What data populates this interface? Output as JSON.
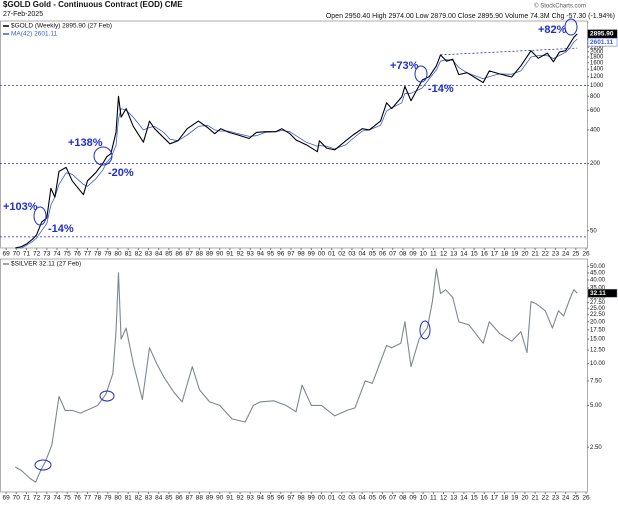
{
  "header": {
    "title": "$GOLD Gold - Continuous Contract (EOD) CME",
    "date": "27-Feb-2025",
    "quote": "Open 2950.40 High 2974.00 Low 2879.00 Close 2895.90 Volume 74.3M Chg -57.30 (-1.94%)",
    "credit": "© StockCharts.com"
  },
  "chart_data": [
    {
      "type": "line",
      "log_scale": true,
      "x": [
        1969.9,
        1970.5,
        1971.0,
        1971.6,
        1972.0,
        1972.5,
        1973.0,
        1973.4,
        1973.8,
        1974.2,
        1974.9,
        1975.5,
        1976.6,
        1977.0,
        1977.8,
        1978.5,
        1978.9,
        1979.3,
        1979.8,
        1980.05,
        1980.3,
        1980.8,
        1981.5,
        1982.5,
        1983.1,
        1983.6,
        1984.5,
        1985.1,
        1985.9,
        1986.8,
        1987.9,
        1988.8,
        1989.5,
        1990.1,
        1990.9,
        1991.8,
        1992.9,
        1993.6,
        1994.5,
        1995.5,
        1996.1,
        1996.9,
        1997.5,
        1998.5,
        1999.6,
        1999.8,
        2000.5,
        2001.3,
        2002.4,
        2003.1,
        2004.0,
        2004.7,
        2005.8,
        2006.4,
        2006.9,
        2007.9,
        2008.2,
        2008.8,
        2009.9,
        2010.6,
        2011.3,
        2011.7,
        2012.3,
        2012.9,
        2013.5,
        2014.3,
        2015.9,
        2016.5,
        2017.5,
        2018.7,
        2019.6,
        2020.6,
        2021.3,
        2022.2,
        2022.8,
        2023.4,
        2024.0,
        2024.4,
        2024.8,
        2025.15
      ],
      "series": [
        {
          "name": "$GOLD (Weekly) 2895.90 (27 Feb)",
          "color": "#000000",
          "last_label": "2895.90",
          "values": [
            35,
            36,
            38,
            42,
            46,
            60,
            65,
            120,
            100,
            170,
            185,
            140,
            105,
            140,
            165,
            200,
            230,
            245,
            380,
            800,
            520,
            620,
            430,
            310,
            480,
            410,
            340,
            300,
            320,
            410,
            480,
            420,
            370,
            410,
            380,
            360,
            335,
            380,
            385,
            385,
            410,
            370,
            325,
            295,
            255,
            320,
            275,
            265,
            320,
            360,
            410,
            400,
            480,
            700,
            620,
            790,
            980,
            730,
            1120,
            1200,
            1500,
            1880,
            1650,
            1720,
            1250,
            1300,
            1060,
            1350,
            1270,
            1190,
            1500,
            2050,
            1750,
            1950,
            1630,
            2000,
            2050,
            2350,
            2700,
            2895.9
          ]
        },
        {
          "name": "MA(42) 2601.11",
          "color": "#3b5bd9",
          "last_label": "2601.11",
          "values": [
            35,
            35,
            37,
            40,
            43,
            50,
            58,
            85,
            100,
            130,
            165,
            160,
            130,
            125,
            145,
            175,
            205,
            225,
            290,
            500,
            620,
            600,
            520,
            400,
            420,
            430,
            380,
            330,
            320,
            360,
            430,
            440,
            400,
            390,
            390,
            370,
            350,
            355,
            380,
            385,
            395,
            385,
            355,
            310,
            285,
            290,
            285,
            270,
            295,
            335,
            390,
            400,
            440,
            590,
            630,
            700,
            850,
            850,
            950,
            1150,
            1380,
            1650,
            1700,
            1680,
            1450,
            1300,
            1150,
            1200,
            1270,
            1260,
            1350,
            1800,
            1850,
            1850,
            1740,
            1860,
            1980,
            2150,
            2450,
            2601.11
          ]
        }
      ],
      "xlim": [
        1968.4,
        2026.1
      ],
      "ylim": [
        35,
        3780
      ],
      "yticks": [
        50,
        200,
        400,
        600,
        800,
        1000,
        1200,
        1400,
        1600,
        1800,
        2000,
        2200,
        2400,
        2600
      ],
      "xticks": [
        {
          "value": 1969,
          "label": "69"
        },
        {
          "value": 1970,
          "label": "70"
        },
        {
          "value": 1971,
          "label": "71"
        },
        {
          "value": 1972,
          "label": "72"
        },
        {
          "value": 1973,
          "label": "73"
        },
        {
          "value": 1974,
          "label": "74"
        },
        {
          "value": 1975,
          "label": "75"
        },
        {
          "value": 1976,
          "label": "76"
        },
        {
          "value": 1977,
          "label": "77"
        },
        {
          "value": 1978,
          "label": "78"
        },
        {
          "value": 1979,
          "label": "79"
        },
        {
          "value": 1980,
          "label": "80"
        },
        {
          "value": 1981,
          "label": "81"
        },
        {
          "value": 1982,
          "label": "82"
        },
        {
          "value": 1983,
          "label": "83"
        },
        {
          "value": 1984,
          "label": "84"
        },
        {
          "value": 1985,
          "label": "85"
        },
        {
          "value": 1986,
          "label": "86"
        },
        {
          "value": 1987,
          "label": "87"
        },
        {
          "value": 1988,
          "label": "88"
        },
        {
          "value": 1989,
          "label": "89"
        },
        {
          "value": 1990,
          "label": "90"
        },
        {
          "value": 1991,
          "label": "91"
        },
        {
          "value": 1992,
          "label": "92"
        },
        {
          "value": 1993,
          "label": "93"
        },
        {
          "value": 1994,
          "label": "94"
        },
        {
          "value": 1995,
          "label": "95"
        },
        {
          "value": 1996,
          "label": "96"
        },
        {
          "value": 1997,
          "label": "97"
        },
        {
          "value": 1998,
          "label": "98"
        },
        {
          "value": 1999,
          "label": "99"
        },
        {
          "value": 2000,
          "label": "00"
        },
        {
          "value": 2001,
          "label": "01"
        },
        {
          "value": 2002,
          "label": "02"
        },
        {
          "value": 2003,
          "label": "03"
        },
        {
          "value": 2004,
          "label": "04"
        },
        {
          "value": 2005,
          "label": "05"
        },
        {
          "value": 2006,
          "label": "06"
        },
        {
          "value": 2007,
          "label": "07"
        },
        {
          "value": 2008,
          "label": "08"
        },
        {
          "value": 2009,
          "label": "09"
        },
        {
          "value": 2010,
          "label": "10"
        },
        {
          "value": 2011,
          "label": "11"
        },
        {
          "value": 2012,
          "label": "12"
        },
        {
          "value": 2013,
          "label": "13"
        },
        {
          "value": 2014,
          "label": "14"
        },
        {
          "value": 2015,
          "label": "15"
        },
        {
          "value": 2016,
          "label": "16"
        },
        {
          "value": 2017,
          "label": "17"
        },
        {
          "value": 2018,
          "label": "18"
        },
        {
          "value": 2019,
          "label": "19"
        },
        {
          "value": 2020,
          "label": "20"
        },
        {
          "value": 2021,
          "label": "21"
        },
        {
          "value": 2022,
          "label": "22"
        },
        {
          "value": 2023,
          "label": "23"
        },
        {
          "value": 2024,
          "label": "24"
        },
        {
          "value": 2025,
          "label": "25"
        },
        {
          "value": 2026,
          "label": "26"
        }
      ],
      "reference_lines": [
        44,
        200,
        1000
      ],
      "trendline": {
        "x": [
          2011.7,
          2025.15
        ],
        "values": [
          1880,
          2160
        ]
      },
      "annotation_color": "#1f2fc8",
      "annotations": [
        "+103%",
        "-14%",
        "+138%",
        "-20%",
        "+73%",
        "-14%",
        "+82%"
      ]
    },
    {
      "type": "line",
      "log_scale": true,
      "x": [
        1969.9,
        1970.5,
        1971.3,
        1971.9,
        1972.4,
        1972.9,
        1973.5,
        1974.2,
        1974.8,
        1975.5,
        1976.3,
        1977.2,
        1978.0,
        1978.8,
        1979.5,
        1979.8,
        1980.05,
        1980.3,
        1980.8,
        1981.5,
        1982.4,
        1983.1,
        1983.8,
        1984.5,
        1985.5,
        1986.3,
        1987.3,
        1988.0,
        1989.0,
        1990.0,
        1991.2,
        1992.5,
        1993.3,
        1994.0,
        1995.3,
        1996.5,
        1997.5,
        1998.1,
        1999.0,
        2000.0,
        2001.3,
        2002.5,
        2003.3,
        2004.3,
        2005.0,
        2006.4,
        2006.9,
        2007.8,
        2008.2,
        2008.8,
        2009.6,
        2010.4,
        2010.9,
        2011.3,
        2011.7,
        2012.2,
        2012.9,
        2013.5,
        2014.5,
        2015.9,
        2016.5,
        2017.5,
        2018.7,
        2019.6,
        2020.2,
        2020.6,
        2021.1,
        2022.0,
        2022.7,
        2023.3,
        2023.8,
        2024.4,
        2024.8,
        2025.15
      ],
      "series": [
        {
          "name": "$SILVER 32.11 (27 Feb)",
          "color": "#7f878e",
          "last_label": "32.11",
          "values": [
            1.8,
            1.7,
            1.5,
            1.4,
            1.7,
            2.0,
            2.6,
            5.8,
            4.6,
            4.6,
            4.4,
            4.7,
            5.0,
            6.0,
            8.5,
            17,
            45,
            15,
            18,
            10,
            5.5,
            13,
            10,
            8,
            6.2,
            5.3,
            9.5,
            6.5,
            5.3,
            5.0,
            4.0,
            3.8,
            5.0,
            5.3,
            5.4,
            5.0,
            4.5,
            7.0,
            5.0,
            5.0,
            4.2,
            4.6,
            4.8,
            7.5,
            7.2,
            13.5,
            13,
            14,
            20,
            9.5,
            15,
            18,
            28,
            48,
            32,
            34,
            30,
            20,
            19,
            14,
            20,
            16.5,
            14.5,
            17,
            12,
            28,
            27,
            24,
            18,
            24,
            22,
            29,
            34,
            32.11
          ]
        }
      ],
      "xlim": [
        1968.4,
        2026.1
      ],
      "ylim": [
        1.19,
        56.6
      ],
      "yticks": [
        {
          "value": 2.5,
          "label": "2.50"
        },
        {
          "value": 5,
          "label": "5.00"
        },
        {
          "value": 7.5,
          "label": "7.50"
        },
        {
          "value": 10,
          "label": "10.00"
        },
        {
          "value": 12.5,
          "label": "12.50"
        },
        {
          "value": 15,
          "label": "15.00"
        },
        {
          "value": 17.5,
          "label": "17.50"
        },
        {
          "value": 20,
          "label": "20.00"
        },
        {
          "value": 22.5,
          "label": "22.50"
        },
        {
          "value": 25,
          "label": "25.00"
        },
        {
          "value": 27.5,
          "label": "27.50"
        },
        {
          "value": 30,
          "label": "30.00"
        },
        {
          "value": 35,
          "label": "35.00"
        },
        {
          "value": 40,
          "label": "40.00"
        },
        {
          "value": 45,
          "label": "45.00"
        },
        {
          "value": 50,
          "label": "50.00"
        }
      ],
      "xticks": [
        {
          "value": 1969,
          "label": "69"
        },
        {
          "value": 1970,
          "label": "70"
        },
        {
          "value": 1971,
          "label": "71"
        },
        {
          "value": 1972,
          "label": "72"
        },
        {
          "value": 1973,
          "label": "73"
        },
        {
          "value": 1974,
          "label": "74"
        },
        {
          "value": 1975,
          "label": "75"
        },
        {
          "value": 1976,
          "label": "76"
        },
        {
          "value": 1977,
          "label": "77"
        },
        {
          "value": 1978,
          "label": "78"
        },
        {
          "value": 1979,
          "label": "79"
        },
        {
          "value": 1980,
          "label": "80"
        },
        {
          "value": 1981,
          "label": "81"
        },
        {
          "value": 1982,
          "label": "82"
        },
        {
          "value": 1983,
          "label": "83"
        },
        {
          "value": 1984,
          "label": "84"
        },
        {
          "value": 1985,
          "label": "85"
        },
        {
          "value": 1986,
          "label": "86"
        },
        {
          "value": 1987,
          "label": "87"
        },
        {
          "value": 1988,
          "label": "88"
        },
        {
          "value": 1989,
          "label": "89"
        },
        {
          "value": 1990,
          "label": "90"
        },
        {
          "value": 1991,
          "label": "91"
        },
        {
          "value": 1992,
          "label": "92"
        },
        {
          "value": 1993,
          "label": "93"
        },
        {
          "value": 1994,
          "label": "94"
        },
        {
          "value": 1995,
          "label": "95"
        },
        {
          "value": 1996,
          "label": "96"
        },
        {
          "value": 1997,
          "label": "97"
        },
        {
          "value": 1998,
          "label": "98"
        },
        {
          "value": 1999,
          "label": "99"
        },
        {
          "value": 2000,
          "label": "00"
        },
        {
          "value": 2001,
          "label": "01"
        },
        {
          "value": 2002,
          "label": "02"
        },
        {
          "value": 2003,
          "label": "03"
        },
        {
          "value": 2004,
          "label": "04"
        },
        {
          "value": 2005,
          "label": "05"
        },
        {
          "value": 2006,
          "label": "06"
        },
        {
          "value": 2007,
          "label": "07"
        },
        {
          "value": 2008,
          "label": "08"
        },
        {
          "value": 2009,
          "label": "09"
        },
        {
          "value": 2010,
          "label": "10"
        },
        {
          "value": 2011,
          "label": "11"
        },
        {
          "value": 2012,
          "label": "12"
        },
        {
          "value": 2013,
          "label": "13"
        },
        {
          "value": 2014,
          "label": "14"
        },
        {
          "value": 2015,
          "label": "15"
        },
        {
          "value": 2016,
          "label": "16"
        },
        {
          "value": 2017,
          "label": "17"
        },
        {
          "value": 2018,
          "label": "18"
        },
        {
          "value": 2019,
          "label": "19"
        },
        {
          "value": 2020,
          "label": "20"
        },
        {
          "value": 2021,
          "label": "21"
        },
        {
          "value": 2022,
          "label": "22"
        },
        {
          "value": 2023,
          "label": "23"
        },
        {
          "value": 2024,
          "label": "24"
        },
        {
          "value": 2025,
          "label": "25"
        },
        {
          "value": 2026,
          "label": "26"
        }
      ],
      "annotation_color": "#1f2fc8"
    }
  ]
}
